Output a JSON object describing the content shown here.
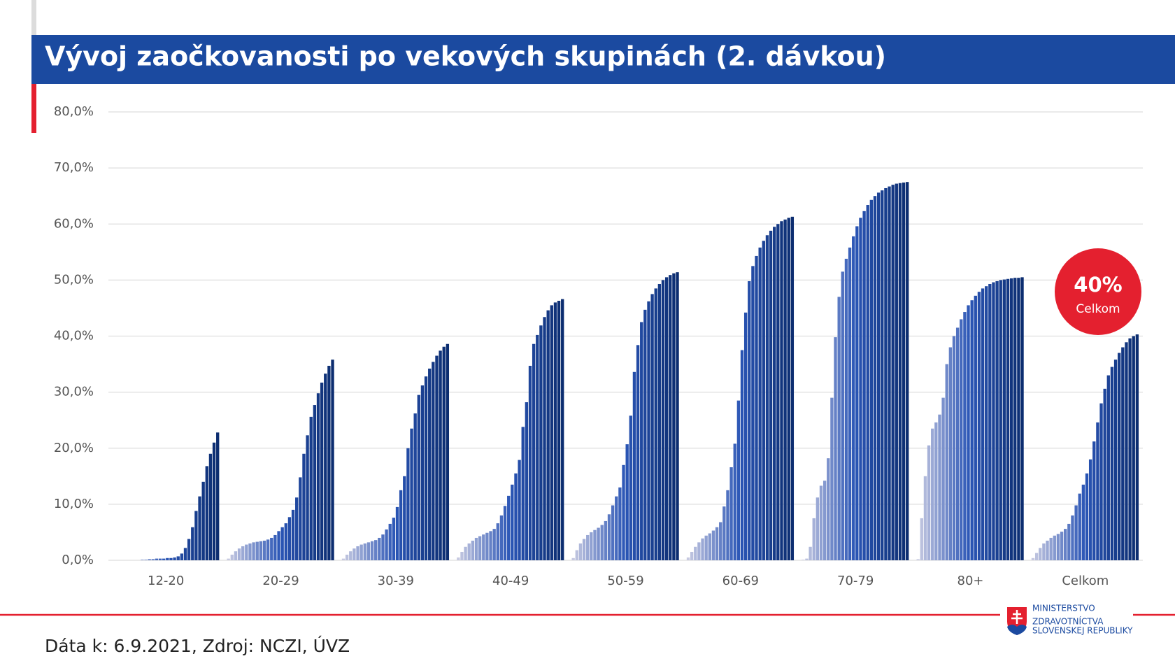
{
  "chart_data": {
    "type": "grouped-progression-bar",
    "title": "Vývoj zaočkovanosti po vekových skupinách (2. dávkou)",
    "groups": [
      {
        "name": "12-20",
        "values": [
          0,
          0,
          0,
          0,
          0,
          0,
          0,
          0,
          0.1,
          0.1,
          0.2,
          0.2,
          0.3,
          0.3,
          0.3,
          0.4,
          0.4,
          0.5,
          0.7,
          1.2,
          2.2,
          3.8,
          5.9,
          8.8,
          11.4,
          14,
          16.8,
          19,
          21,
          22.8
        ]
      },
      {
        "name": "20-29",
        "values": [
          0.3,
          1,
          1.6,
          2.1,
          2.5,
          2.8,
          3,
          3.2,
          3.3,
          3.4,
          3.5,
          3.7,
          4,
          4.5,
          5.2,
          5.9,
          6.6,
          7.7,
          9,
          11.2,
          14.8,
          19,
          22.3,
          25.6,
          27.7,
          29.8,
          31.7,
          33.3,
          34.7,
          35.8
        ]
      },
      {
        "name": "30-39",
        "values": [
          0.3,
          1,
          1.6,
          2.1,
          2.5,
          2.8,
          3,
          3.2,
          3.4,
          3.6,
          4,
          4.6,
          5.5,
          6.5,
          7.6,
          9.5,
          12.5,
          15,
          20,
          23.5,
          26.2,
          29.5,
          31.2,
          32.8,
          34.2,
          35.4,
          36.5,
          37.4,
          38.1,
          38.6
        ]
      },
      {
        "name": "40-49",
        "values": [
          0.5,
          1.5,
          2.4,
          3,
          3.5,
          4,
          4.3,
          4.6,
          4.9,
          5.2,
          5.6,
          6.6,
          8,
          9.7,
          11.5,
          13.5,
          15.5,
          17.9,
          23.8,
          28.2,
          34.7,
          38.6,
          40.2,
          41.9,
          43.4,
          44.6,
          45.5,
          46,
          46.3,
          46.6
        ]
      },
      {
        "name": "50-59",
        "values": [
          0.4,
          1.8,
          3,
          3.8,
          4.5,
          5,
          5.4,
          5.8,
          6.3,
          7,
          8.2,
          9.8,
          11.4,
          13,
          17,
          20.7,
          25.8,
          33.6,
          38.4,
          42.5,
          44.7,
          46.2,
          47.5,
          48.5,
          49.3,
          50,
          50.5,
          50.9,
          51.2,
          51.4
        ]
      },
      {
        "name": "60-69",
        "values": [
          0.5,
          1.5,
          2.4,
          3.2,
          3.9,
          4.4,
          4.8,
          5.3,
          5.9,
          6.8,
          9.6,
          12.5,
          16.6,
          20.8,
          28.5,
          37.5,
          44.2,
          49.8,
          52.5,
          54.3,
          55.8,
          57,
          58,
          58.8,
          59.5,
          60,
          60.5,
          60.8,
          61.1,
          61.3
        ]
      },
      {
        "name": "70-79",
        "values": [
          0.1,
          0.3,
          2.4,
          7.5,
          11.2,
          13.3,
          14.2,
          18.2,
          29,
          39.8,
          47,
          51.5,
          53.8,
          55.8,
          57.8,
          59.6,
          61.1,
          62.3,
          63.4,
          64.3,
          65,
          65.6,
          66,
          66.4,
          66.7,
          67,
          67.2,
          67.3,
          67.4,
          67.5
        ]
      },
      {
        "name": "80+",
        "values": [
          0.2,
          7.5,
          15,
          20.5,
          23.5,
          24.6,
          26,
          29,
          35,
          38,
          40,
          41.5,
          43,
          44.3,
          45.5,
          46.4,
          47.2,
          47.9,
          48.5,
          48.9,
          49.3,
          49.6,
          49.8,
          50,
          50.1,
          50.2,
          50.3,
          50.4,
          50.4,
          50.5
        ]
      },
      {
        "name": "Celkom",
        "values": [
          0.4,
          1.3,
          2.2,
          3,
          3.5,
          4,
          4.4,
          4.7,
          5.1,
          5.6,
          6.5,
          8,
          9.8,
          11.9,
          13.5,
          15.5,
          18,
          21.2,
          24.6,
          28,
          30.6,
          33,
          34.5,
          35.8,
          37,
          38,
          38.9,
          39.6,
          40,
          40.3
        ]
      }
    ],
    "colors": [
      "#c6c9e1",
      "#2a55b5",
      "#0c2d70"
    ],
    "ylim": [
      0,
      80
    ],
    "yticks": [
      {
        "value": 0,
        "label": "0,0%"
      },
      {
        "value": 10,
        "label": "10,0%"
      },
      {
        "value": 20,
        "label": "20,0%"
      },
      {
        "value": 30,
        "label": "30,0%"
      },
      {
        "value": 40,
        "label": "40,0%"
      },
      {
        "value": 50,
        "label": "50,0%"
      },
      {
        "value": 60,
        "label": "60,0%"
      },
      {
        "value": 70,
        "label": "70,0%"
      },
      {
        "value": 80,
        "label": "80,0%"
      }
    ],
    "grid": true,
    "badge": {
      "value": "40%",
      "label": "Celkom"
    }
  },
  "footer": {
    "source": "Dáta k: 6.9.2021, Zdroj: NCZI, ÚVZ",
    "logo": [
      "MINISTERSTVO",
      "ZDRAVOTNÍCTVA",
      "SLOVENSKEJ REPUBLIKY"
    ]
  }
}
